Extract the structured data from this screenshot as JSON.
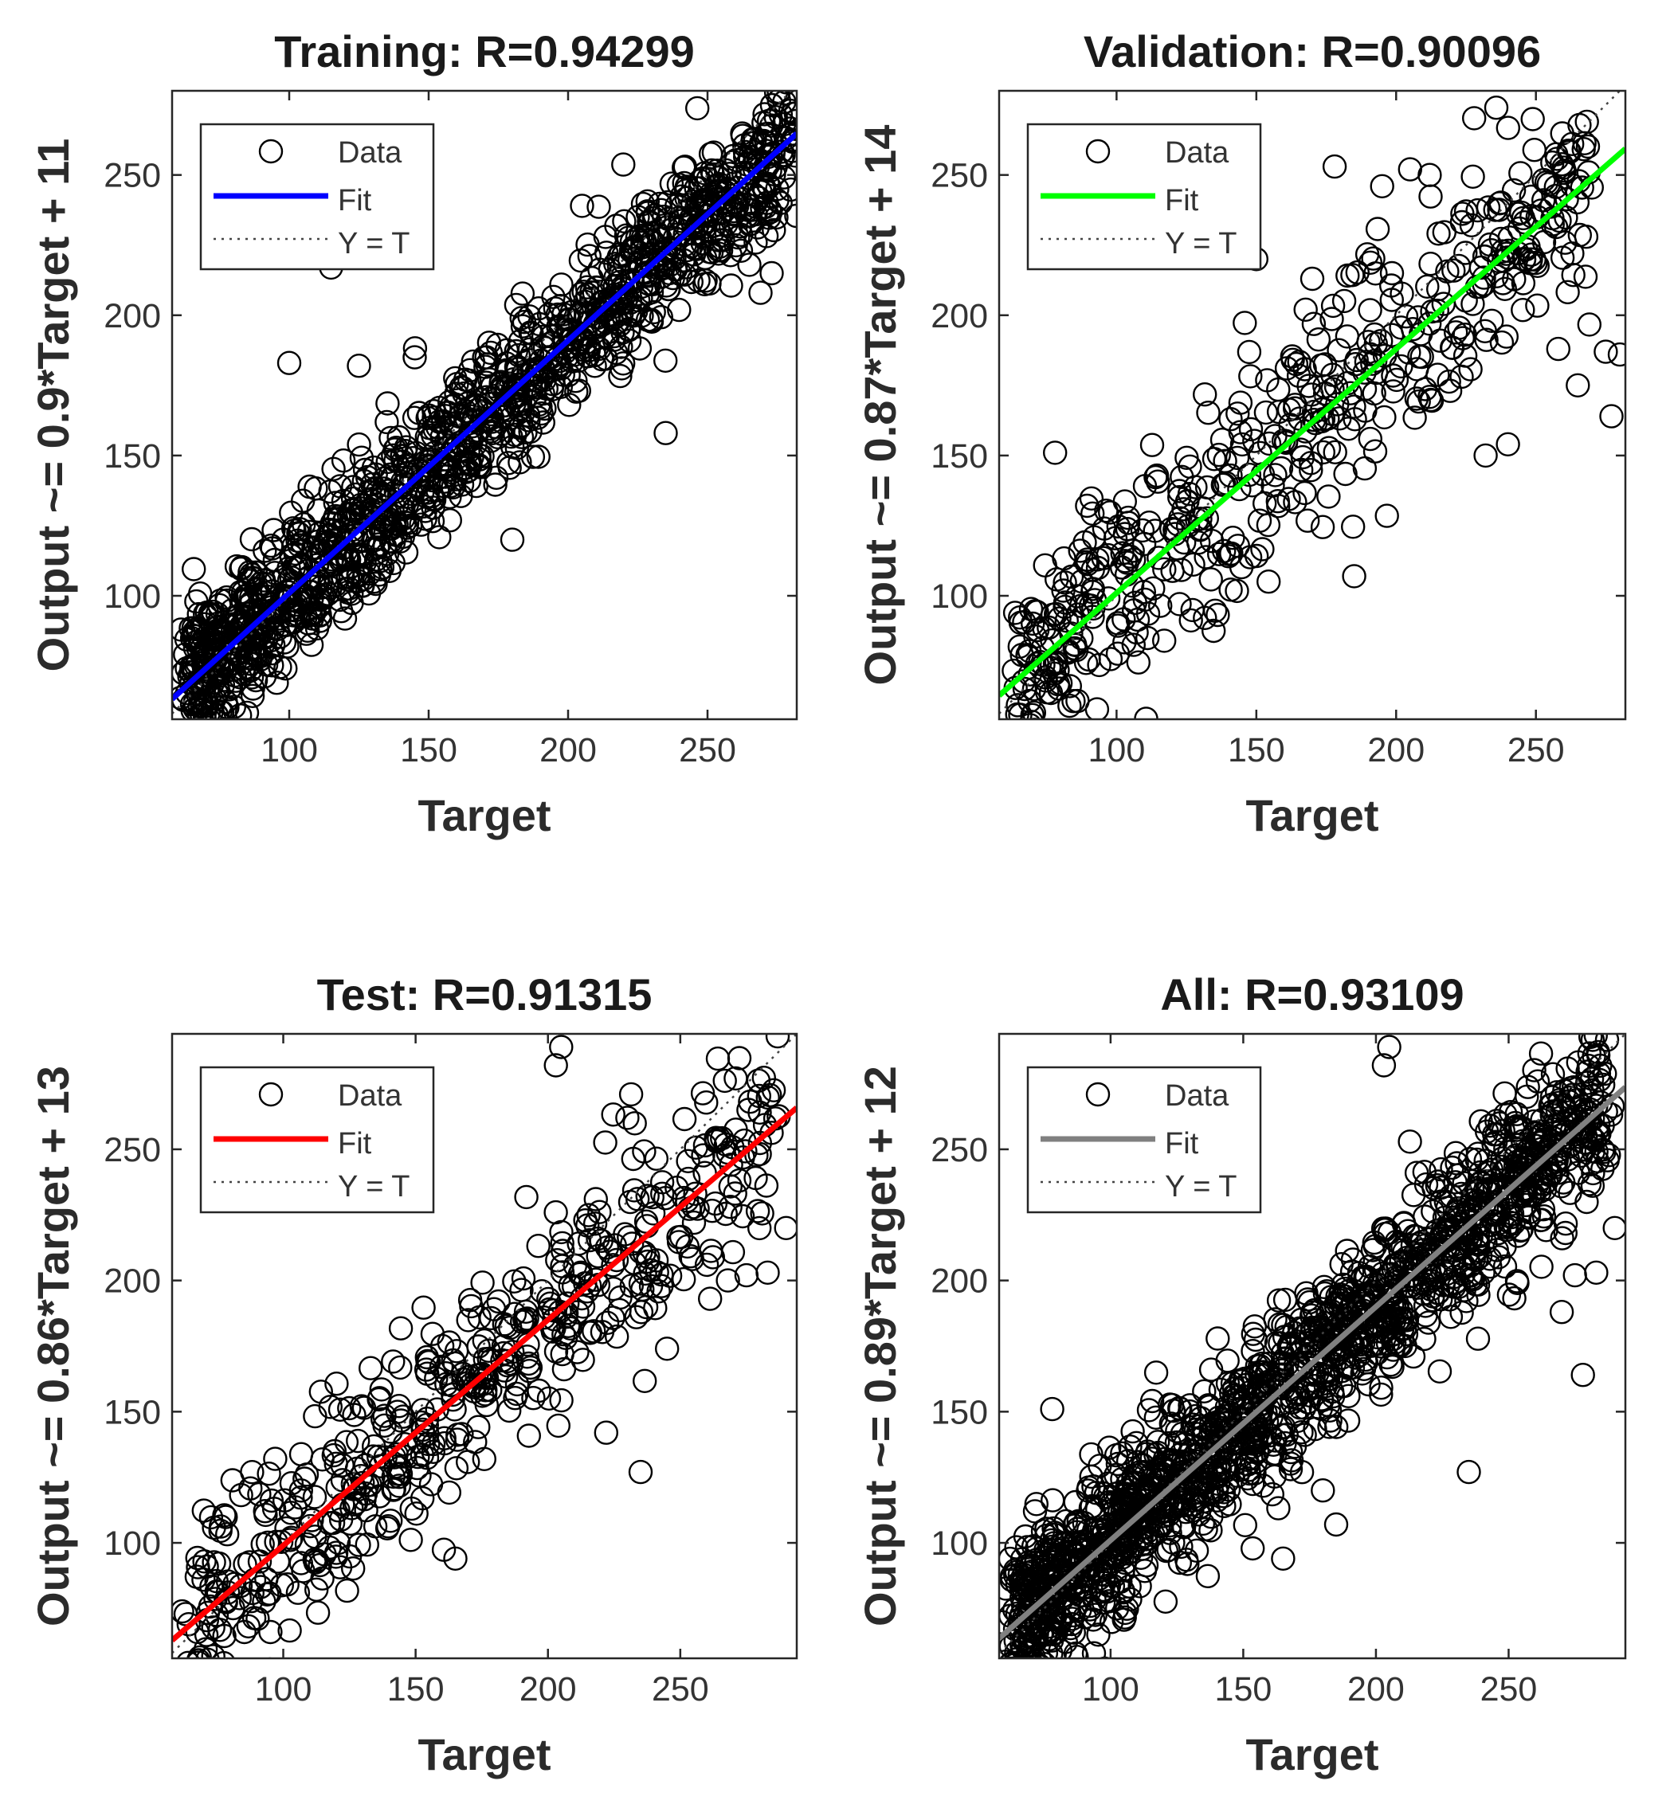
{
  "figure": {
    "background": "#ffffff",
    "axes_color": "#262626",
    "marker_color": "#000000"
  },
  "chart_data": [
    {
      "type": "scatter",
      "title": "Training: R=0.94299",
      "xlabel": "Target",
      "ylabel": "Output ~= 0.9*Target + 11",
      "xlim": [
        58,
        282
      ],
      "ylim": [
        56,
        280
      ],
      "xticks": [
        100,
        150,
        200,
        250
      ],
      "yticks": [
        100,
        150,
        200,
        250
      ],
      "fit": {
        "slope": 0.9,
        "intercept": 11,
        "color": "#0000ff"
      },
      "legend": {
        "position": "top-left",
        "entries": [
          "Data",
          "Fit",
          "Y = T"
        ]
      },
      "sample": {
        "n": 1300,
        "xmin": 63,
        "xmax": 280,
        "sd": 13,
        "seed": 11
      },
      "outliers": [
        [
          205,
          239
        ],
        [
          225,
          235
        ],
        [
          250,
          240
        ],
        [
          265,
          218
        ],
        [
          273,
          215
        ],
        [
          115,
          217
        ],
        [
          145,
          185
        ],
        [
          180,
          120
        ],
        [
          100,
          183
        ],
        [
          125,
          182
        ],
        [
          235,
          158
        ],
        [
          262,
          223
        ],
        [
          275,
          245
        ]
      ]
    },
    {
      "type": "scatter",
      "title": "Validation: R=0.90096",
      "xlabel": "Target",
      "ylabel": "Output ~= 0.87*Target + 14",
      "xlim": [
        58,
        282
      ],
      "ylim": [
        56,
        280
      ],
      "xticks": [
        100,
        150,
        200,
        250
      ],
      "yticks": [
        100,
        150,
        200,
        250
      ],
      "fit": {
        "slope": 0.87,
        "intercept": 14,
        "color": "#00ff00"
      },
      "legend": {
        "position": "top-left",
        "entries": [
          "Data",
          "Fit",
          "Y = T"
        ]
      },
      "sample": {
        "n": 520,
        "xmin": 65,
        "xmax": 270,
        "sd": 20,
        "seed": 23
      },
      "outliers": [
        [
          178,
          253
        ],
        [
          195,
          246
        ],
        [
          205,
          252
        ],
        [
          212,
          250
        ],
        [
          275,
          187
        ],
        [
          280,
          186
        ],
        [
          265,
          175
        ],
        [
          277,
          164
        ],
        [
          78,
          151
        ],
        [
          185,
          107
        ],
        [
          240,
          154
        ],
        [
          232,
          150
        ],
        [
          170,
          213
        ],
        [
          150,
          220
        ],
        [
          225,
          237
        ],
        [
          258,
          188
        ],
        [
          268,
          228
        ]
      ]
    },
    {
      "type": "scatter",
      "title": "Test: R=0.91315",
      "xlabel": "Target",
      "ylabel": "Output ~= 0.86*Target + 13",
      "xlim": [
        58,
        294
      ],
      "ylim": [
        56,
        294
      ],
      "xticks": [
        100,
        150,
        200,
        250
      ],
      "yticks": [
        100,
        150,
        200,
        250
      ],
      "fit": {
        "slope": 0.86,
        "intercept": 13,
        "color": "#ff0000"
      },
      "legend": {
        "position": "top-left",
        "entries": [
          "Data",
          "Fit",
          "Y = T"
        ]
      },
      "sample": {
        "n": 520,
        "xmin": 65,
        "xmax": 285,
        "sd": 19,
        "seed": 37
      },
      "outliers": [
        [
          205,
          289
        ],
        [
          203,
          282
        ],
        [
          280,
          264
        ],
        [
          230,
          262
        ],
        [
          235,
          127
        ],
        [
          165,
          94
        ],
        [
          222,
          142
        ],
        [
          245,
          174
        ],
        [
          275,
          202
        ],
        [
          283,
          203
        ],
        [
          290,
          220
        ],
        [
          268,
          200
        ],
        [
          255,
          228
        ],
        [
          260,
          206
        ]
      ]
    },
    {
      "type": "scatter",
      "title": "All: R=0.93109",
      "xlabel": "Target",
      "ylabel": "Output ~= 0.89*Target + 12",
      "xlim": [
        58,
        294
      ],
      "ylim": [
        56,
        294
      ],
      "xticks": [
        100,
        150,
        200,
        250
      ],
      "yticks": [
        100,
        150,
        200,
        250
      ],
      "fit": {
        "slope": 0.89,
        "intercept": 12,
        "color": "#808080"
      },
      "legend": {
        "position": "top-left",
        "entries": [
          "Data",
          "Fit",
          "Y = T"
        ]
      },
      "sample": {
        "n": 1600,
        "xmin": 63,
        "xmax": 288,
        "sd": 15,
        "seed": 53
      },
      "outliers": [
        [
          205,
          289
        ],
        [
          203,
          282
        ],
        [
          280,
          264
        ],
        [
          235,
          127
        ],
        [
          165,
          94
        ],
        [
          78,
          151
        ],
        [
          185,
          107
        ],
        [
          275,
          202
        ],
        [
          283,
          203
        ],
        [
          290,
          220
        ],
        [
          278,
          164
        ],
        [
          180,
          120
        ],
        [
          262,
          223
        ],
        [
          286,
          249
        ],
        [
          270,
          188
        ]
      ]
    }
  ]
}
